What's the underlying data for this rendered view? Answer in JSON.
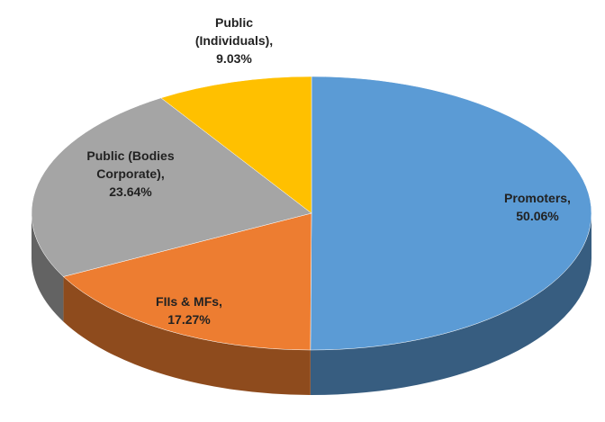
{
  "chart_data": {
    "type": "pie3d",
    "categories": [
      "Promoters,",
      "FIIs & MFs,",
      "Public (Bodies Corporate),",
      "Public (Individuals),"
    ],
    "values": [
      50.06,
      17.27,
      23.64,
      9.03
    ],
    "value_labels": [
      "50.06%",
      "17.27%",
      "23.64%",
      "9.03%"
    ],
    "colors": [
      "#5b9bd5",
      "#ed7d31",
      "#a5a5a5",
      "#ffc000"
    ]
  }
}
